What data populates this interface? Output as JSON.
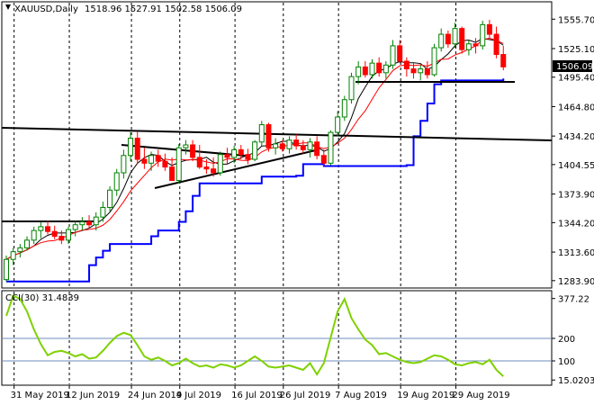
{
  "header": {
    "symbol": "XAUUSD,Daily",
    "ohlc": "1518.96 1527.91 1502.58 1506.09",
    "indicator_label": "CCI(30) 31.4839"
  },
  "colors": {
    "bull": "#008000",
    "bear": "#ff0000",
    "ma_fast": "#000000",
    "ma_red": "#ff0000",
    "envelope": "#0000ff",
    "cci": "#7fd100",
    "cci_level": "#6c8ebf"
  },
  "chart_data": [
    {
      "type": "candlestick",
      "title": "XAUUSD,Daily",
      "ylim": [
        1280,
        1570
      ],
      "y_ticks": [
        "1555.70",
        "1525.10",
        "1495.40",
        "1464.80",
        "1434.20",
        "1404.55",
        "1373.90",
        "1344.20",
        "1313.60",
        "1283.90"
      ],
      "x_ticks": [
        "31 May 2019",
        "12 Jun 2019",
        "24 Jun 2019",
        "4 Jul 2019",
        "16 Jul 2019",
        "26 Jul 2019",
        "7 Aug 2019",
        "19 Aug 2019",
        "29 Aug 2019"
      ],
      "current_price_label": "1506.09",
      "candles": [
        [
          1285,
          1310,
          1283,
          1306
        ],
        [
          1306,
          1318,
          1300,
          1314
        ],
        [
          1314,
          1322,
          1308,
          1318
        ],
        [
          1318,
          1330,
          1315,
          1326
        ],
        [
          1326,
          1340,
          1322,
          1336
        ],
        [
          1336,
          1345,
          1328,
          1340
        ],
        [
          1340,
          1346,
          1332,
          1335
        ],
        [
          1335,
          1341,
          1327,
          1330
        ],
        [
          1330,
          1336,
          1322,
          1326
        ],
        [
          1326,
          1340,
          1322,
          1337
        ],
        [
          1337,
          1346,
          1330,
          1342
        ],
        [
          1342,
          1350,
          1336,
          1345
        ],
        [
          1345,
          1352,
          1338,
          1342
        ],
        [
          1342,
          1355,
          1336,
          1350
        ],
        [
          1350,
          1366,
          1345,
          1360
        ],
        [
          1360,
          1382,
          1356,
          1378
        ],
        [
          1378,
          1400,
          1372,
          1396
        ],
        [
          1396,
          1420,
          1390,
          1414
        ],
        [
          1414,
          1438,
          1408,
          1432
        ],
        [
          1432,
          1439,
          1405,
          1410
        ],
        [
          1410,
          1422,
          1400,
          1406
        ],
        [
          1406,
          1418,
          1398,
          1414
        ],
        [
          1414,
          1420,
          1402,
          1408
        ],
        [
          1408,
          1416,
          1398,
          1402
        ],
        [
          1402,
          1412,
          1388,
          1388
        ],
        [
          1388,
          1426,
          1385,
          1422
        ],
        [
          1422,
          1430,
          1415,
          1425
        ],
        [
          1425,
          1430,
          1408,
          1412
        ],
        [
          1412,
          1425,
          1400,
          1402
        ],
        [
          1402,
          1410,
          1395,
          1400
        ],
        [
          1400,
          1412,
          1392,
          1396
        ],
        [
          1396,
          1418,
          1393,
          1415
        ],
        [
          1415,
          1422,
          1405,
          1412
        ],
        [
          1412,
          1424,
          1406,
          1420
        ],
        [
          1420,
          1425,
          1410,
          1415
        ],
        [
          1415,
          1421,
          1405,
          1410
        ],
        [
          1410,
          1430,
          1408,
          1428
        ],
        [
          1428,
          1450,
          1424,
          1446
        ],
        [
          1446,
          1448,
          1418,
          1422
        ],
        [
          1422,
          1432,
          1415,
          1426
        ],
        [
          1426,
          1430,
          1418,
          1421
        ],
        [
          1421,
          1434,
          1416,
          1430
        ],
        [
          1430,
          1436,
          1420,
          1424
        ],
        [
          1424,
          1430,
          1416,
          1420
        ],
        [
          1420,
          1432,
          1412,
          1428
        ],
        [
          1428,
          1434,
          1410,
          1414
        ],
        [
          1414,
          1420,
          1403,
          1406
        ],
        [
          1406,
          1440,
          1404,
          1438
        ],
        [
          1438,
          1460,
          1434,
          1454
        ],
        [
          1454,
          1476,
          1450,
          1472
        ],
        [
          1472,
          1500,
          1468,
          1496
        ],
        [
          1496,
          1512,
          1488,
          1506
        ],
        [
          1506,
          1512,
          1495,
          1498
        ],
        [
          1498,
          1514,
          1494,
          1510
        ],
        [
          1510,
          1516,
          1496,
          1500
        ],
        [
          1500,
          1512,
          1494,
          1508
        ],
        [
          1508,
          1534,
          1504,
          1528
        ],
        [
          1528,
          1534,
          1510,
          1512
        ],
        [
          1512,
          1516,
          1496,
          1504
        ],
        [
          1504,
          1510,
          1494,
          1500
        ],
        [
          1500,
          1508,
          1492,
          1504
        ],
        [
          1504,
          1512,
          1494,
          1498
        ],
        [
          1498,
          1530,
          1496,
          1526
        ],
        [
          1526,
          1546,
          1522,
          1540
        ],
        [
          1540,
          1544,
          1526,
          1530
        ],
        [
          1530,
          1552,
          1526,
          1546
        ],
        [
          1546,
          1548,
          1520,
          1524
        ],
        [
          1524,
          1534,
          1518,
          1530
        ],
        [
          1530,
          1536,
          1520,
          1528
        ],
        [
          1528,
          1554,
          1524,
          1550
        ],
        [
          1550,
          1555,
          1534,
          1540
        ],
        [
          1540,
          1548,
          1515,
          1519
        ],
        [
          1518.96,
          1527.91,
          1502.58,
          1506.09
        ]
      ]
    },
    {
      "type": "line",
      "title": "CCI(30) 31.4839",
      "ylim": [
        0,
        400
      ],
      "y_ticks": [
        "377.22",
        "200",
        "100",
        "15.0203"
      ],
      "levels": [
        200,
        100
      ],
      "series": [
        {
          "values": [
            300,
            390,
            375,
            320,
            240,
            175,
            125,
            140,
            145,
            135,
            120,
            130,
            110,
            115,
            145,
            180,
            210,
            225,
            215,
            170,
            120,
            105,
            115,
            100,
            80,
            90,
            110,
            90,
            75,
            80,
            70,
            85,
            80,
            70,
            80,
            100,
            120,
            100,
            75,
            70,
            75,
            80,
            70,
            60,
            90,
            40,
            90,
            205,
            320,
            375,
            290,
            240,
            195,
            170,
            130,
            135,
            120,
            105,
            95,
            90,
            95,
            110,
            125,
            120,
            105,
            85,
            80,
            90,
            95,
            85,
            105,
            60,
            31.48
          ]
        }
      ]
    }
  ]
}
